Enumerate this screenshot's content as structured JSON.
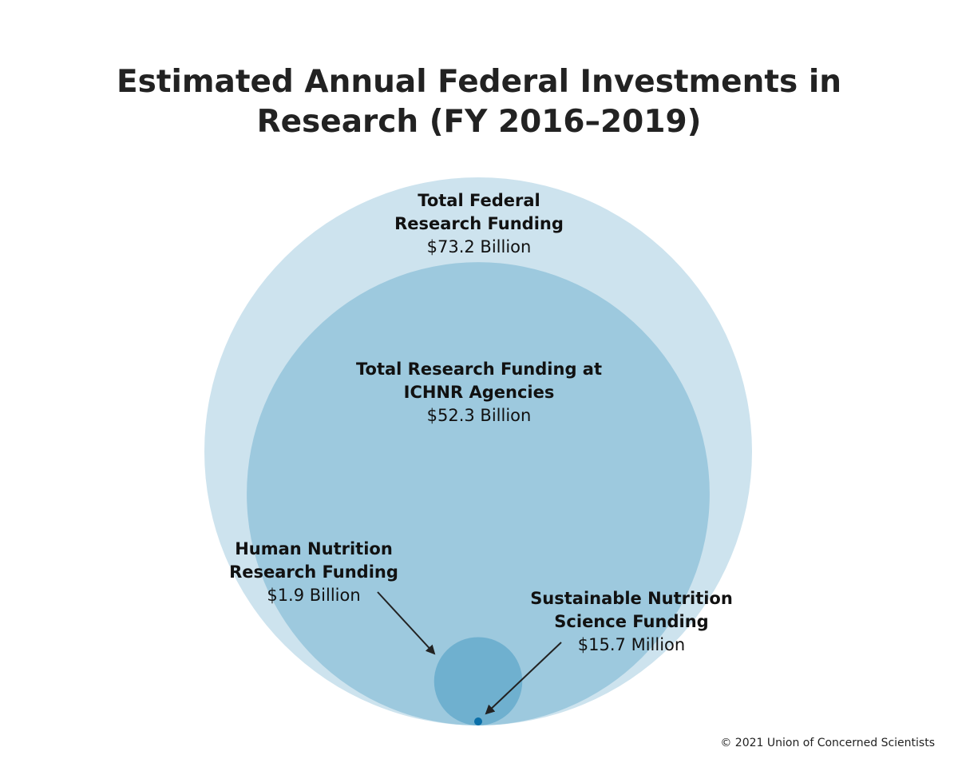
{
  "chart_data": {
    "type": "nested-circle",
    "title": "Estimated Annual Federal Investments in Research (FY 2016–2019)",
    "title_lines": [
      "Estimated Annual Federal Investments in",
      "Research (FY 2016–2019)"
    ],
    "series": [
      {
        "name_lines": [
          "Total Federal",
          "Research Funding"
        ],
        "value_label": "$73.2 Billion",
        "value_millions": 73200,
        "color": "#cde3ee"
      },
      {
        "name_lines": [
          "Total Research Funding at",
          "ICHNR Agencies"
        ],
        "value_label": "$52.3 Billion",
        "value_millions": 52300,
        "color": "#9dc9de"
      },
      {
        "name_lines": [
          "Human Nutrition",
          "Research Funding"
        ],
        "value_label": "$1.9 Billion",
        "value_millions": 1900,
        "color": "#6fb0cf"
      },
      {
        "name_lines": [
          "Sustainable Nutrition",
          "Science Funding"
        ],
        "value_label": "$15.7 Million",
        "value_millions": 15.7,
        "color": "#0b6fa8"
      }
    ]
  },
  "footer": {
    "copyright": "© 2021 Union of Concerned Scientists"
  },
  "colors": {
    "arrow": "#222222"
  }
}
